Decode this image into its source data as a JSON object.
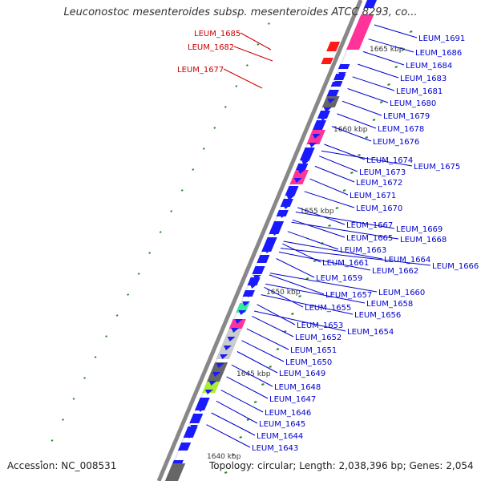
{
  "title": "Leuconostoc mesenteroides subsp. mesenteroides ATCC 8293, co...",
  "footer": {
    "accession": "Accession: NC_008531",
    "summary": "Topology: circular; Length: 2,038,396 bp; Genes: 2,054"
  },
  "kbp_labels": [
    "1665 kbp",
    "1660 kbp",
    "1655 kbp",
    "1650 kbp",
    "1645 kbp",
    "1640 kbp"
  ],
  "left_labels": [
    "LEUM_1685",
    "LEUM_1682",
    "LEUM_1677"
  ],
  "right_labels": [
    "LEUM_1691",
    "LEUM_1686",
    "LEUM_1684",
    "LEUM_1683",
    "LEUM_1681",
    "LEUM_1680",
    "LEUM_1679",
    "LEUM_1678",
    "LEUM_1676",
    "LEUM_1675",
    "LEUM_1674",
    "LEUM_1673",
    "LEUM_1672",
    "LEUM_1671",
    "LEUM_1670",
    "LEUM_1669",
    "LEUM_1668",
    "LEUM_1667",
    "LEUM_1666",
    "LEUM_1665",
    "LEUM_1664",
    "LEUM_1663",
    "LEUM_1662",
    "LEUM_1661",
    "LEUM_1660",
    "LEUM_1659",
    "LEUM_1658",
    "LEUM_1657",
    "LEUM_1656",
    "LEUM_1655",
    "LEUM_1654",
    "LEUM_1653",
    "LEUM_1652",
    "LEUM_1651",
    "LEUM_1650",
    "LEUM_1649",
    "LEUM_1648",
    "LEUM_1647",
    "LEUM_1646",
    "LEUM_1645",
    "LEUM_1644",
    "LEUM_1643"
  ],
  "colors": {
    "forward_gene": "#1a1aff",
    "reverse_gene": "#ff1a1a",
    "label_left": "#cc0000",
    "label_right": "#0000cc",
    "backbone": "#888888",
    "tick": "#2a8a2a",
    "rna": "#ff3399",
    "pseudo": "#666666",
    "other": "#cccccc"
  }
}
